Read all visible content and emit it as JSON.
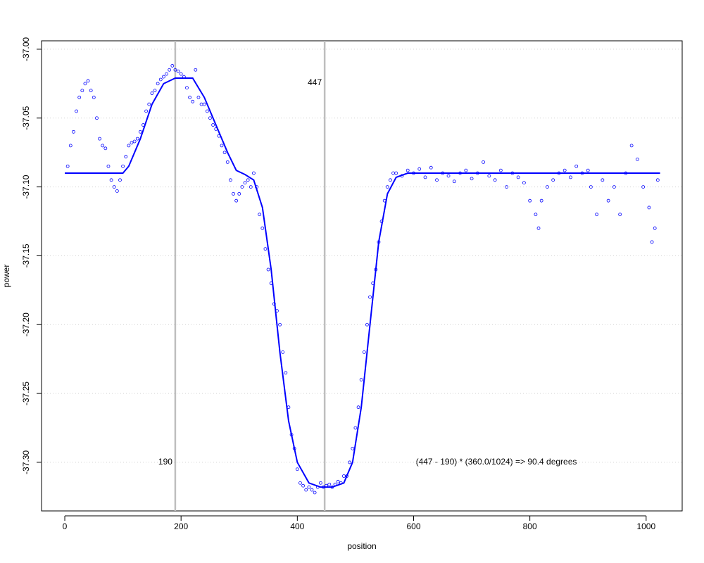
{
  "chart_data": {
    "type": "scatter",
    "x_label": "position",
    "y_label": "power",
    "xlim": [
      -40,
      1062
    ],
    "ylim": [
      -37.3353,
      -36.9939
    ],
    "xticks": [
      0,
      200,
      400,
      600,
      800,
      1000
    ],
    "yticks": [
      {
        "value": -37,
        "label": "-37.00"
      },
      -37.05,
      {
        "value": -37.1,
        "label": "-37.10"
      },
      -37.15,
      {
        "value": -37.2,
        "label": "-37.20"
      },
      -37.25,
      {
        "value": -37.3,
        "label": "-37.30"
      }
    ],
    "grid": true,
    "vlines": [
      190,
      447
    ],
    "annotation": "(447 - 190) * (360.0/1024) => 90.4 degrees",
    "points": {
      "color": "#0000ff",
      "x": [
        5,
        10,
        15,
        20,
        25,
        30,
        35,
        40,
        45,
        50,
        55,
        60,
        65,
        70,
        75,
        80,
        85,
        90,
        95,
        100,
        105,
        110,
        115,
        120,
        125,
        130,
        135,
        140,
        145,
        150,
        155,
        160,
        165,
        170,
        175,
        180,
        185,
        190,
        195,
        200,
        205,
        210,
        215,
        220,
        225,
        230,
        235,
        240,
        245,
        250,
        255,
        260,
        265,
        270,
        275,
        280,
        285,
        290,
        295,
        300,
        305,
        310,
        315,
        320,
        325,
        330,
        335,
        340,
        345,
        350,
        355,
        360,
        365,
        370,
        375,
        380,
        385,
        390,
        395,
        400,
        405,
        410,
        415,
        420,
        425,
        430,
        435,
        440,
        445,
        450,
        455,
        460,
        465,
        470,
        475,
        480,
        485,
        490,
        495,
        500,
        505,
        510,
        515,
        520,
        525,
        530,
        535,
        540,
        545,
        550,
        555,
        560,
        565,
        570,
        580,
        590,
        600,
        610,
        620,
        630,
        640,
        650,
        660,
        670,
        680,
        690,
        700,
        710,
        720,
        730,
        740,
        750,
        760,
        770,
        780,
        790,
        800,
        810,
        815,
        820,
        830,
        840,
        850,
        860,
        870,
        880,
        890,
        900,
        905,
        915,
        925,
        935,
        945,
        955,
        965,
        975,
        985,
        995,
        1005,
        1010,
        1015,
        1020
      ],
      "values": [
        -37.085,
        -37.07,
        -37.06,
        -37.045,
        -37.035,
        -37.03,
        -37.025,
        -37.023,
        -37.03,
        -37.035,
        -37.05,
        -37.065,
        -37.07,
        -37.072,
        -37.085,
        -37.095,
        -37.1,
        -37.103,
        -37.095,
        -37.085,
        -37.078,
        -37.07,
        -37.068,
        -37.067,
        -37.065,
        -37.06,
        -37.055,
        -37.045,
        -37.04,
        -37.032,
        -37.03,
        -37.025,
        -37.022,
        -37.02,
        -37.018,
        -37.015,
        -37.012,
        -37.015,
        -37.016,
        -37.018,
        -37.02,
        -37.028,
        -37.035,
        -37.038,
        -37.015,
        -37.035,
        -37.04,
        -37.04,
        -37.045,
        -37.05,
        -37.055,
        -37.058,
        -37.063,
        -37.07,
        -37.075,
        -37.082,
        -37.095,
        -37.105,
        -37.11,
        -37.105,
        -37.1,
        -37.097,
        -37.095,
        -37.1,
        -37.09,
        -37.1,
        -37.12,
        -37.13,
        -37.145,
        -37.16,
        -37.17,
        -37.185,
        -37.19,
        -37.2,
        -37.22,
        -37.235,
        -37.26,
        -37.28,
        -37.29,
        -37.305,
        -37.315,
        -37.317,
        -37.32,
        -37.318,
        -37.32,
        -37.322,
        -37.318,
        -37.315,
        -37.318,
        -37.317,
        -37.316,
        -37.318,
        -37.316,
        -37.314,
        -37.315,
        -37.31,
        -37.31,
        -37.3,
        -37.29,
        -37.275,
        -37.26,
        -37.24,
        -37.22,
        -37.2,
        -37.18,
        -37.17,
        -37.16,
        -37.14,
        -37.125,
        -37.11,
        -37.1,
        -37.095,
        -37.09,
        -37.09,
        -37.092,
        -37.088,
        -37.09,
        -37.087,
        -37.093,
        -37.086,
        -37.095,
        -37.09,
        -37.092,
        -37.096,
        -37.09,
        -37.088,
        -37.094,
        -37.09,
        -37.082,
        -37.092,
        -37.095,
        -37.088,
        -37.1,
        -37.09,
        -37.093,
        -37.097,
        -37.11,
        -37.12,
        -37.13,
        -37.11,
        -37.1,
        -37.095,
        -37.09,
        -37.088,
        -37.093,
        -37.085,
        -37.09,
        -37.088,
        -37.1,
        -37.12,
        -37.095,
        -37.11,
        -37.1,
        -37.12,
        -37.09,
        -37.07,
        -37.08,
        -37.1,
        -37.115,
        -37.14,
        -37.13,
        -37.095
      ]
    },
    "fit": {
      "color": "#0000ff",
      "x": [
        0,
        100,
        110,
        130,
        150,
        170,
        190,
        220,
        240,
        260,
        280,
        295,
        310,
        325,
        340,
        355,
        370,
        385,
        400,
        420,
        440,
        460,
        480,
        495,
        510,
        525,
        540,
        555,
        570,
        590,
        1024
      ],
      "values": [
        -37.09,
        -37.09,
        -37.085,
        -37.065,
        -37.04,
        -37.025,
        -37.021,
        -37.021,
        -37.035,
        -37.055,
        -37.075,
        -37.088,
        -37.091,
        -37.095,
        -37.115,
        -37.16,
        -37.22,
        -37.27,
        -37.3,
        -37.315,
        -37.318,
        -37.318,
        -37.315,
        -37.3,
        -37.26,
        -37.2,
        -37.14,
        -37.105,
        -37.093,
        -37.09,
        -37.09
      ]
    }
  }
}
